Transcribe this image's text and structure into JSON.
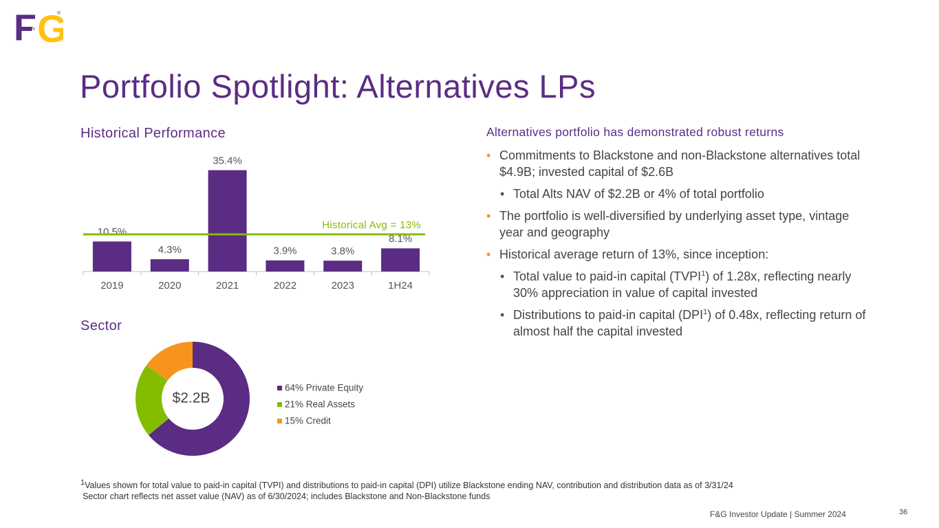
{
  "logo": {
    "left": "F",
    "amp": "&",
    "right": "G",
    "mark": "®"
  },
  "title": "Portfolio Spotlight:  Alternatives LPs",
  "chart_data": [
    {
      "type": "bar",
      "title": "Historical Performance",
      "categories": [
        "2019",
        "2020",
        "2021",
        "2022",
        "2023",
        "1H24"
      ],
      "values": [
        10.5,
        4.3,
        35.4,
        3.9,
        3.8,
        8.1
      ],
      "value_labels": [
        "10.5%",
        "4.3%",
        "35.4%",
        "3.9%",
        "3.8%",
        "8.1%"
      ],
      "color": "#5b2c83",
      "ylim": [
        0,
        36
      ],
      "reference_line": {
        "value": 13,
        "label": "Historical Avg = 13%",
        "color": "#84bd00"
      }
    },
    {
      "type": "donut",
      "title": "Sector",
      "center_label": "$2.2B",
      "categories": [
        "64% Private Equity",
        "21% Real Assets",
        "15% Credit"
      ],
      "values": [
        64,
        21,
        15
      ],
      "colors": [
        "#5b2c83",
        "#84bd00",
        "#f7941d"
      ]
    }
  ],
  "bullets": {
    "heading": "Alternatives portfolio has demonstrated robust returns",
    "items": [
      {
        "level": 1,
        "parts": [
          "Commitments to Blackstone and non-Blackstone alternatives total $4.9B; invested capital of $2.6B"
        ]
      },
      {
        "level": 2,
        "parts": [
          "Total Alts NAV of $2.2B or 4% of total portfolio"
        ]
      },
      {
        "level": 1,
        "parts": [
          "The portfolio is well-diversified by underlying asset type, vintage year and geography"
        ]
      },
      {
        "level": 1,
        "parts": [
          "Historical average return of 13%, since inception:"
        ]
      },
      {
        "level": 2,
        "parts": [
          "Total value to paid-in capital (TVPI",
          "1",
          ") of 1.28x, reflecting nearly 30% appreciation in value of capital invested"
        ]
      },
      {
        "level": 2,
        "parts": [
          "Distributions to paid-in capital (DPI",
          "1",
          ") of 0.48x, reflecting return of almost half the capital invested"
        ]
      }
    ]
  },
  "footnotes": {
    "mark": "1",
    "line1": "Values shown for total value to paid-in capital (TVPI) and distributions to paid-in capital (DPI) utilize Blackstone ending NAV, contribution and distribution data as of 3/31/24",
    "line2": "Sector chart reflects net asset value (NAV) as of 6/30/2024; includes Blackstone and Non-Blackstone funds"
  },
  "footer": {
    "text": "F&G Investor Update | Summer 2024",
    "page": "36"
  }
}
